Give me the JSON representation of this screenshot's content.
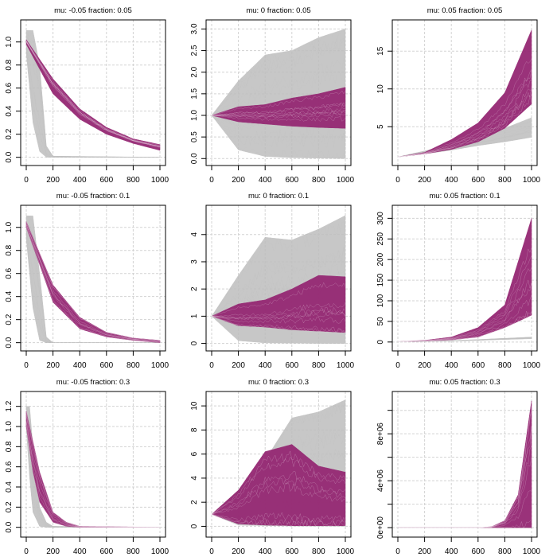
{
  "colors": {
    "selected": "#952873",
    "other": "#bebebe",
    "grid": "#d3d3d3",
    "axis": "#000000"
  },
  "chart_data": [
    {
      "type": "line",
      "title": "mu: -0.05  fraction: 0.05",
      "mu": -0.05,
      "fraction": 0.05,
      "xlim": [
        0,
        1000
      ],
      "ylim": [
        -0.03,
        1.15
      ],
      "xticks": [
        0,
        200,
        400,
        600,
        800,
        1000
      ],
      "yticks": [
        0,
        0.2,
        0.4,
        0.6,
        0.8,
        1.0
      ],
      "ytick_labels": [
        "0.0",
        "0.2",
        "0.4",
        "0.6",
        "0.8",
        "1.0"
      ],
      "grid": true,
      "series": [
        {
          "name": "other",
          "color": "other",
          "x": [
            0,
            50,
            100,
            150,
            200,
            1000
          ],
          "low": [
            0.9,
            0.3,
            0.05,
            0.0,
            0.0,
            0.0
          ],
          "high": [
            1.1,
            1.1,
            0.8,
            0.1,
            0.01,
            0.0
          ]
        },
        {
          "name": "selected",
          "color": "selected",
          "x": [
            0,
            200,
            400,
            600,
            800,
            1000
          ],
          "low": [
            0.98,
            0.55,
            0.33,
            0.2,
            0.12,
            0.06
          ],
          "high": [
            1.02,
            0.68,
            0.42,
            0.26,
            0.16,
            0.11
          ]
        }
      ]
    },
    {
      "type": "line",
      "title": "mu: 0  fraction: 0.05",
      "mu": 0,
      "fraction": 0.05,
      "xlim": [
        0,
        1000
      ],
      "ylim": [
        -0.05,
        3.1
      ],
      "xticks": [
        0,
        200,
        400,
        600,
        800,
        1000
      ],
      "yticks": [
        0,
        0.5,
        1.0,
        1.5,
        2.0,
        2.5,
        3.0
      ],
      "ytick_labels": [
        "0.0",
        "0.5",
        "1.0",
        "1.5",
        "2.0",
        "2.5",
        "3.0"
      ],
      "grid": true,
      "series": [
        {
          "name": "other",
          "color": "other",
          "x": [
            0,
            200,
            400,
            600,
            800,
            1000
          ],
          "low": [
            1.0,
            0.2,
            0.05,
            0.02,
            0.01,
            0.0
          ],
          "high": [
            1.0,
            1.8,
            2.4,
            2.5,
            2.8,
            3.0
          ]
        },
        {
          "name": "selected",
          "color": "selected",
          "x": [
            0,
            200,
            400,
            600,
            800,
            1000
          ],
          "low": [
            1.0,
            0.85,
            0.8,
            0.75,
            0.72,
            0.7
          ],
          "high": [
            1.0,
            1.2,
            1.25,
            1.4,
            1.5,
            1.65
          ]
        }
      ]
    },
    {
      "type": "line",
      "title": "mu: 0.05  fraction: 0.05",
      "mu": 0.05,
      "fraction": 0.05,
      "xlim": [
        0,
        1000
      ],
      "ylim": [
        0.5,
        18.5
      ],
      "xticks": [
        0,
        200,
        400,
        600,
        800,
        1000
      ],
      "yticks": [
        5,
        10,
        15
      ],
      "ytick_labels": [
        "5",
        "10",
        "15"
      ],
      "grid": true,
      "series": [
        {
          "name": "other",
          "color": "other",
          "x": [
            0,
            200,
            400,
            600,
            800,
            1000
          ],
          "low": [
            1.0,
            1.4,
            1.9,
            2.5,
            3.0,
            3.6
          ],
          "high": [
            1.0,
            1.8,
            2.6,
            3.6,
            4.8,
            6.2
          ]
        },
        {
          "name": "selected",
          "color": "selected",
          "x": [
            0,
            200,
            400,
            600,
            800,
            1000
          ],
          "low": [
            1.0,
            1.4,
            2.0,
            3.0,
            4.8,
            8.0
          ],
          "high": [
            1.0,
            1.6,
            3.3,
            5.5,
            9.5,
            17.8
          ]
        }
      ]
    },
    {
      "type": "line",
      "title": "mu: -0.05  fraction: 0.1",
      "mu": -0.05,
      "fraction": 0.1,
      "xlim": [
        0,
        1000
      ],
      "ylim": [
        -0.03,
        1.15
      ],
      "xticks": [
        0,
        200,
        400,
        600,
        800,
        1000
      ],
      "yticks": [
        0,
        0.2,
        0.4,
        0.6,
        0.8,
        1.0
      ],
      "ytick_labels": [
        "0.0",
        "0.2",
        "0.4",
        "0.6",
        "0.8",
        "1.0"
      ],
      "grid": true,
      "series": [
        {
          "name": "other",
          "color": "other",
          "x": [
            0,
            50,
            100,
            150,
            200,
            1000
          ],
          "low": [
            0.9,
            0.3,
            0.02,
            0.0,
            0.0,
            0.0
          ],
          "high": [
            1.1,
            1.1,
            0.6,
            0.05,
            0.0,
            0.0
          ]
        },
        {
          "name": "selected",
          "color": "selected",
          "x": [
            0,
            200,
            400,
            600,
            800,
            1000
          ],
          "low": [
            1.0,
            0.35,
            0.12,
            0.05,
            0.02,
            0.0
          ],
          "high": [
            1.05,
            0.5,
            0.22,
            0.09,
            0.04,
            0.02
          ]
        }
      ]
    },
    {
      "type": "line",
      "title": "mu: 0  fraction: 0.1",
      "mu": 0,
      "fraction": 0.1,
      "xlim": [
        0,
        1000
      ],
      "ylim": [
        -0.1,
        4.9
      ],
      "xticks": [
        0,
        200,
        400,
        600,
        800,
        1000
      ],
      "yticks": [
        0,
        1,
        2,
        3,
        4
      ],
      "ytick_labels": [
        "0",
        "1",
        "2",
        "3",
        "4"
      ],
      "grid": true,
      "series": [
        {
          "name": "other",
          "color": "other",
          "x": [
            0,
            200,
            400,
            600,
            800,
            1000
          ],
          "low": [
            1.0,
            0.1,
            0.02,
            0.01,
            0.0,
            0.0
          ],
          "high": [
            1.0,
            2.5,
            3.9,
            3.8,
            4.2,
            4.7
          ]
        },
        {
          "name": "selected",
          "color": "selected",
          "x": [
            0,
            200,
            400,
            600,
            800,
            1000
          ],
          "low": [
            1.0,
            0.65,
            0.6,
            0.5,
            0.45,
            0.4
          ],
          "high": [
            1.0,
            1.45,
            1.6,
            2.0,
            2.5,
            2.45
          ]
        }
      ]
    },
    {
      "type": "line",
      "title": "mu: 0.05  fraction: 0.1",
      "mu": 0.05,
      "fraction": 0.1,
      "xlim": [
        0,
        1000
      ],
      "ylim": [
        -10,
        320
      ],
      "xticks": [
        0,
        200,
        400,
        600,
        800,
        1000
      ],
      "yticks": [
        0,
        50,
        100,
        150,
        200,
        250,
        300
      ],
      "ytick_labels": [
        "0",
        "50",
        "100",
        "150",
        "200",
        "250",
        "300"
      ],
      "grid": true,
      "series": [
        {
          "name": "other",
          "color": "other",
          "x": [
            0,
            200,
            400,
            600,
            800,
            1000
          ],
          "low": [
            1,
            1.5,
            2.5,
            4,
            6,
            8
          ],
          "high": [
            1,
            2,
            3.5,
            6,
            9,
            12
          ]
        },
        {
          "name": "selected",
          "color": "selected",
          "x": [
            0,
            200,
            400,
            600,
            800,
            1000
          ],
          "low": [
            1,
            2,
            5,
            12,
            35,
            65
          ],
          "high": [
            1,
            4,
            12,
            35,
            90,
            300
          ]
        }
      ]
    },
    {
      "type": "line",
      "title": "mu: -0.05  fraction: 0.3",
      "mu": -0.05,
      "fraction": 0.3,
      "xlim": [
        0,
        1000
      ],
      "ylim": [
        -0.05,
        1.3
      ],
      "xticks": [
        0,
        200,
        400,
        600,
        800,
        1000
      ],
      "yticks": [
        0,
        0.2,
        0.4,
        0.6,
        0.8,
        1.0,
        1.2
      ],
      "ytick_labels": [
        "0.0",
        "0.2",
        "0.4",
        "0.6",
        "0.8",
        "1.0",
        "1.2"
      ],
      "grid": true,
      "series": [
        {
          "name": "other",
          "color": "other",
          "x": [
            0,
            25,
            50,
            100,
            150,
            200,
            1000
          ],
          "low": [
            1.0,
            0.5,
            0.15,
            0.01,
            0.0,
            0.0,
            0.0
          ],
          "high": [
            1.2,
            1.2,
            0.8,
            0.2,
            0.05,
            0.01,
            0.0
          ]
        },
        {
          "name": "selected",
          "color": "selected",
          "x": [
            0,
            50,
            100,
            200,
            300,
            400,
            1000
          ],
          "low": [
            1.0,
            0.55,
            0.25,
            0.05,
            0.01,
            0.0,
            0.0
          ],
          "high": [
            1.15,
            0.85,
            0.55,
            0.15,
            0.05,
            0.01,
            0.0
          ]
        }
      ]
    },
    {
      "type": "line",
      "title": "mu: 0  fraction: 0.3",
      "mu": 0,
      "fraction": 0.3,
      "xlim": [
        0,
        1000
      ],
      "ylim": [
        -0.5,
        10.8
      ],
      "xticks": [
        0,
        200,
        400,
        600,
        800,
        1000
      ],
      "yticks": [
        0,
        2,
        4,
        6,
        8,
        10
      ],
      "ytick_labels": [
        "0",
        "2",
        "4",
        "6",
        "8",
        "10"
      ],
      "grid": true,
      "series": [
        {
          "name": "other",
          "color": "other",
          "x": [
            0,
            200,
            400,
            600,
            800,
            1000
          ],
          "low": [
            1.0,
            0.1,
            0.05,
            0.02,
            0.01,
            0.0
          ],
          "high": [
            1.0,
            3.0,
            5.5,
            9.0,
            9.5,
            10.5
          ]
        },
        {
          "name": "selected",
          "color": "selected",
          "x": [
            0,
            200,
            400,
            600,
            800,
            1000
          ],
          "low": [
            1.0,
            0.2,
            0.1,
            0.05,
            0.05,
            0.05
          ],
          "high": [
            1.0,
            3.0,
            6.2,
            6.8,
            5.0,
            4.5
          ]
        }
      ]
    },
    {
      "type": "line",
      "title": "mu: 0.05  fraction: 0.3",
      "mu": 0.05,
      "fraction": 0.3,
      "xlim": [
        0,
        1000
      ],
      "ylim": [
        -400000,
        11200000
      ],
      "xticks": [
        0,
        200,
        400,
        600,
        800,
        1000
      ],
      "yticks": [
        0,
        2000000,
        4000000,
        6000000,
        8000000,
        10000000
      ],
      "ytick_labels": [
        "0e+00",
        "",
        "4e+06",
        "",
        "8e+06",
        ""
      ],
      "grid": true,
      "series": [
        {
          "name": "other",
          "color": "other",
          "x": [
            0,
            1000
          ],
          "low": [
            0,
            0
          ],
          "high": [
            0,
            0
          ]
        },
        {
          "name": "selected",
          "color": "selected",
          "x": [
            0,
            600,
            700,
            800,
            900,
            1000
          ],
          "low": [
            0,
            0,
            0,
            0,
            0,
            0
          ],
          "high": [
            0,
            0,
            80000,
            600000,
            2800000,
            10800000
          ]
        }
      ]
    }
  ]
}
